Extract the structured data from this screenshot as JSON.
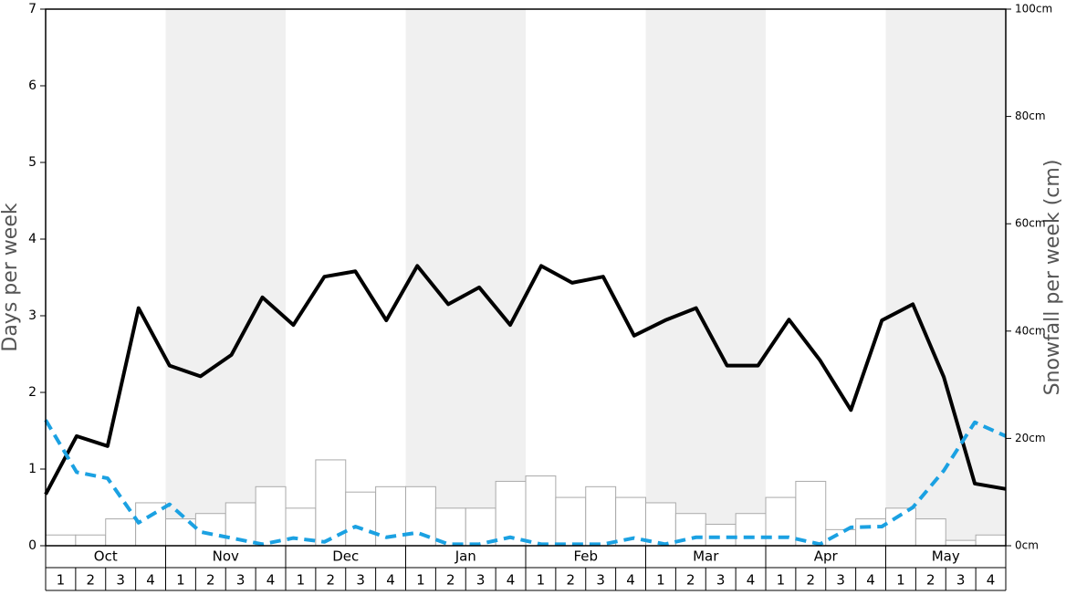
{
  "chart_data": {
    "type": "combo",
    "y_label": "Days per week",
    "y2_label": "Snowfall per week (cm)",
    "months": [
      "Oct",
      "Nov",
      "Dec",
      "Jan",
      "Feb",
      "Mar",
      "Apr",
      "May"
    ],
    "categories": [
      "1",
      "2",
      "3",
      "4",
      "1",
      "2",
      "3",
      "4",
      "1",
      "2",
      "3",
      "4",
      "1",
      "2",
      "3",
      "4",
      "1",
      "2",
      "3",
      "4",
      "1",
      "2",
      "3",
      "4",
      "1",
      "2",
      "3",
      "4",
      "1",
      "2",
      "3",
      "4"
    ],
    "ylim": [
      0,
      7
    ],
    "yticks": [
      0,
      1,
      2,
      3,
      4,
      5,
      6,
      7
    ],
    "y2lim": [
      0,
      100
    ],
    "y2ticks": [
      {
        "value": 0,
        "label": "0cm"
      },
      {
        "value": 20,
        "label": "20cm"
      },
      {
        "value": 40,
        "label": "40cm"
      },
      {
        "value": 60,
        "label": "60cm"
      },
      {
        "value": 80,
        "label": "80cm"
      },
      {
        "value": 100,
        "label": "100cm"
      }
    ],
    "series": [
      {
        "type": "bar",
        "axis": "y2",
        "color": "#ffffff",
        "values": [
          2,
          2,
          5,
          8,
          5,
          6,
          8,
          11,
          7,
          16,
          10,
          11,
          11,
          7,
          7,
          12,
          13,
          9,
          11,
          9,
          8,
          6,
          4,
          6,
          9,
          12,
          3,
          5,
          7,
          5,
          1,
          2
        ]
      },
      {
        "type": "line",
        "color": "#000000",
        "values": [
          0.67,
          1.43,
          1.3,
          3.1,
          2.35,
          2.21,
          2.49,
          3.24,
          2.88,
          3.51,
          3.58,
          2.94,
          3.65,
          3.15,
          3.37,
          2.88,
          3.65,
          3.43,
          3.51,
          2.74,
          2.94,
          3.1,
          2.35,
          2.35,
          2.95,
          2.42,
          1.77,
          2.94,
          3.15,
          2.2,
          0.81,
          0.74
        ]
      },
      {
        "type": "line",
        "dashed": true,
        "color": "#1ba1e2",
        "values": [
          1.64,
          0.96,
          0.88,
          0.3,
          0.54,
          0.18,
          0.1,
          0.02,
          0.1,
          0.05,
          0.25,
          0.11,
          0.17,
          0.02,
          0.02,
          0.11,
          0.02,
          0.02,
          0.02,
          0.1,
          0.02,
          0.11,
          0.11,
          0.11,
          0.11,
          0.02,
          0.24,
          0.25,
          0.5,
          0.98,
          1.61,
          1.43
        ]
      }
    ]
  }
}
